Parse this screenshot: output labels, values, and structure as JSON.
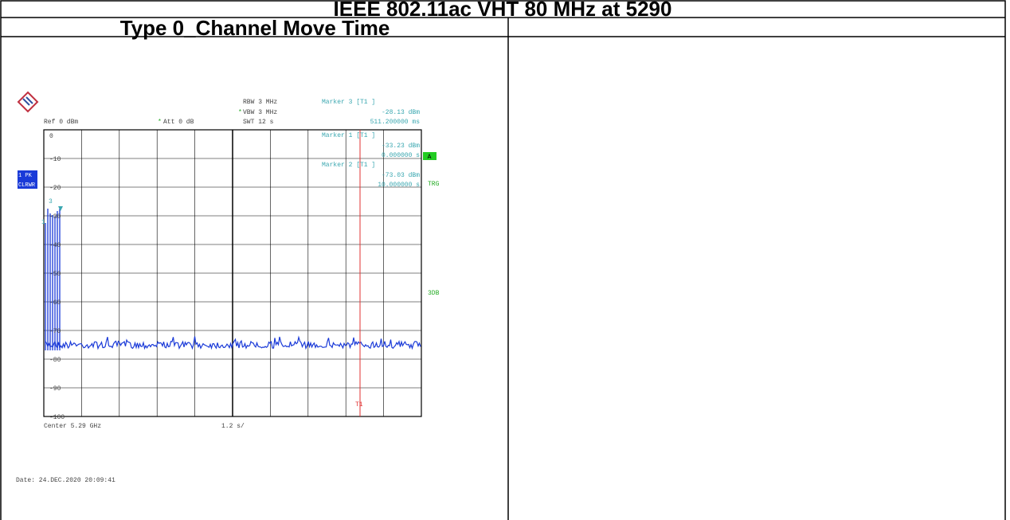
{
  "header": {
    "title": "IEEE 802.11ac VHT 80 MHz at 5290"
  },
  "table": {
    "heading": "Type 0_Channel Move Time"
  },
  "screenshot": {
    "ref": "Ref  0 dBm",
    "att": "Att  0 dB",
    "rbw": "RBW 3 MHz",
    "vbw": "VBW 3 MHz",
    "swt": "SWT 12 s",
    "markers": [
      {
        "title": "Marker 3 [T1 ]",
        "level": "-28.13 dBm",
        "time": "511.200000 ms"
      },
      {
        "title": "Marker 1 [T1 ]",
        "level": "-33.23 dBm",
        "time": "0.000000 s"
      },
      {
        "title": "Marker 2 [T1 ]",
        "level": "-73.03 dBm",
        "time": "10.000000 s"
      }
    ],
    "yticks": [
      "0",
      "-10",
      "-20",
      "-30",
      "-40",
      "-50",
      "-60",
      "-70",
      "-80",
      "-90",
      "-100"
    ],
    "badge_a": "A",
    "trg": "TRG",
    "db3": "3DB",
    "pk": "1 PK",
    "clrwr": "CLRWR",
    "marker_labels": [
      "3",
      "1"
    ],
    "t1": "T1",
    "center": "Center 5.29 GHz",
    "span": "1.2 s/",
    "date": "Date: 24.DEC.2020  20:09:41"
  }
}
